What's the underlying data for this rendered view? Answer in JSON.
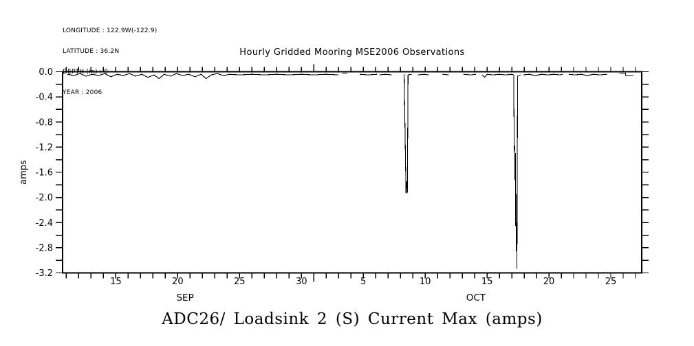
{
  "meta": {
    "lines": [
      "LONGITUDE : 122.9W(-122.9)",
      "LATITUDE : 36.2N",
      "DEPTH (m) : 0",
      "YEAR : 2006"
    ]
  },
  "footer_title": "ADC26/ Loadsink 2 (S) Current Max (amps)",
  "colors": {
    "ink": "#000000",
    "background": "#ffffff"
  },
  "chart_data": {
    "type": "line",
    "title": "Hourly Gridded Mooring MSE2006 Observations",
    "series_name": "Loadsink 2 (S) Current Max",
    "ylabel": "amps",
    "ylim": [
      -3.2,
      0.0
    ],
    "y_tick_minor_step": 0.2,
    "y_tick_major_step": 0.4,
    "y_tick_labels": [
      "0.0",
      "-0.4",
      "-0.8",
      "-1.2",
      "-1.6",
      "-2.0",
      "-2.4",
      "-2.8",
      "-3.2"
    ],
    "x_axis": {
      "unit": "day (0 = 11 SEP 2006 00:00)",
      "domain": [
        -0.3,
        46.5
      ],
      "minor_tick_every_days": 1,
      "minor_tick_range": [
        0,
        46
      ],
      "month_boundary_day": 20,
      "labeled_ticks": [
        {
          "day": 4,
          "label": "15"
        },
        {
          "day": 9,
          "label": "20"
        },
        {
          "day": 14,
          "label": "25"
        },
        {
          "day": 19,
          "label": "30"
        },
        {
          "day": 24,
          "label": "5"
        },
        {
          "day": 29,
          "label": "10"
        },
        {
          "day": 34,
          "label": "15"
        },
        {
          "day": 39,
          "label": "20"
        },
        {
          "day": 44,
          "label": "25"
        }
      ],
      "month_labels": [
        {
          "label": "SEP",
          "day": 9.6
        },
        {
          "label": "OCT",
          "day": 33.1
        }
      ]
    },
    "line_color": "#000000",
    "grid": false,
    "legend": "none",
    "spike_events": [
      {
        "date": "08-OCT-2006",
        "day": 27.5,
        "min_amps": -1.93
      },
      {
        "date": "17-OCT-2006",
        "day": 36.3,
        "min_amps": -3.13
      }
    ],
    "segments": [
      [
        [
          0.1,
          -0.04
        ],
        [
          0.6,
          -0.06
        ],
        [
          1.1,
          -0.03
        ],
        [
          1.6,
          -0.07
        ],
        [
          2.1,
          -0.04
        ],
        [
          2.6,
          -0.06
        ],
        [
          3.1,
          -0.03
        ],
        [
          3.6,
          -0.08
        ],
        [
          4.1,
          -0.04
        ],
        [
          4.6,
          -0.06
        ],
        [
          5.1,
          -0.03
        ],
        [
          5.6,
          -0.07
        ],
        [
          6.1,
          -0.04
        ],
        [
          6.6,
          -0.09
        ],
        [
          7.1,
          -0.05
        ],
        [
          7.5,
          -0.11
        ],
        [
          7.9,
          -0.04
        ],
        [
          8.4,
          -0.07
        ],
        [
          8.9,
          -0.03
        ],
        [
          9.4,
          -0.06
        ],
        [
          9.9,
          -0.04
        ],
        [
          10.4,
          -0.08
        ],
        [
          10.9,
          -0.04
        ],
        [
          11.3,
          -0.11
        ],
        [
          11.7,
          -0.05
        ],
        [
          12.2,
          -0.03
        ],
        [
          12.7,
          -0.06
        ],
        [
          13.2,
          -0.04
        ],
        [
          14.0,
          -0.05
        ],
        [
          15.0,
          -0.04
        ],
        [
          16.0,
          -0.05
        ],
        [
          17.0,
          -0.04
        ],
        [
          18.0,
          -0.05
        ],
        [
          19.0,
          -0.04
        ],
        [
          20.0,
          -0.05
        ],
        [
          21.0,
          -0.04
        ],
        [
          22.0,
          -0.05
        ]
      ],
      [
        [
          22.3,
          -0.02
        ],
        [
          22.7,
          -0.02
        ]
      ],
      [
        [
          23.7,
          -0.04
        ],
        [
          24.4,
          -0.05
        ],
        [
          25.1,
          -0.04
        ]
      ],
      [
        [
          25.3,
          -0.05
        ],
        [
          25.8,
          -0.04
        ],
        [
          26.3,
          -0.05
        ]
      ],
      [
        [
          27.3,
          -0.04
        ],
        [
          27.45,
          -1.93
        ],
        [
          27.5,
          -1.75
        ],
        [
          27.56,
          -1.93
        ],
        [
          27.62,
          -0.05
        ],
        [
          27.9,
          -0.04
        ]
      ],
      [
        [
          28.4,
          -0.05
        ],
        [
          28.9,
          -0.04
        ],
        [
          29.3,
          -0.05
        ]
      ],
      [
        [
          30.4,
          -0.04
        ],
        [
          30.9,
          -0.05
        ]
      ],
      [
        [
          32.1,
          -0.04
        ],
        [
          32.7,
          -0.05
        ],
        [
          33.1,
          -0.04
        ]
      ],
      [
        [
          33.6,
          -0.05
        ],
        [
          33.8,
          -0.09
        ],
        [
          34.0,
          -0.04
        ],
        [
          34.5,
          -0.05
        ],
        [
          35.0,
          -0.04
        ],
        [
          35.5,
          -0.05
        ],
        [
          36.0,
          -0.04
        ],
        [
          36.15,
          -0.05
        ],
        [
          36.2,
          -1.24
        ],
        [
          36.23,
          -1.18
        ],
        [
          36.26,
          -1.72
        ],
        [
          36.29,
          -1.3
        ],
        [
          36.32,
          -2.45
        ],
        [
          36.34,
          -1.95
        ],
        [
          36.37,
          -2.85
        ],
        [
          36.39,
          -2.4
        ],
        [
          36.42,
          -3.13
        ],
        [
          36.47,
          -0.07
        ],
        [
          36.7,
          -0.05
        ]
      ],
      [
        [
          36.9,
          -0.05
        ],
        [
          37.4,
          -0.04
        ],
        [
          37.9,
          -0.06
        ],
        [
          38.4,
          -0.04
        ],
        [
          38.9,
          -0.05
        ],
        [
          39.4,
          -0.04
        ],
        [
          39.9,
          -0.05
        ],
        [
          40.1,
          -0.04
        ]
      ],
      [
        [
          40.6,
          -0.04
        ],
        [
          41.1,
          -0.05
        ],
        [
          41.6,
          -0.04
        ],
        [
          42.1,
          -0.06
        ],
        [
          42.6,
          -0.04
        ],
        [
          43.1,
          -0.05
        ],
        [
          43.7,
          -0.04
        ]
      ],
      [
        [
          44.7,
          -0.02
        ],
        [
          45.2,
          -0.02
        ],
        [
          45.2,
          -0.06
        ],
        [
          45.8,
          -0.06
        ]
      ]
    ]
  }
}
